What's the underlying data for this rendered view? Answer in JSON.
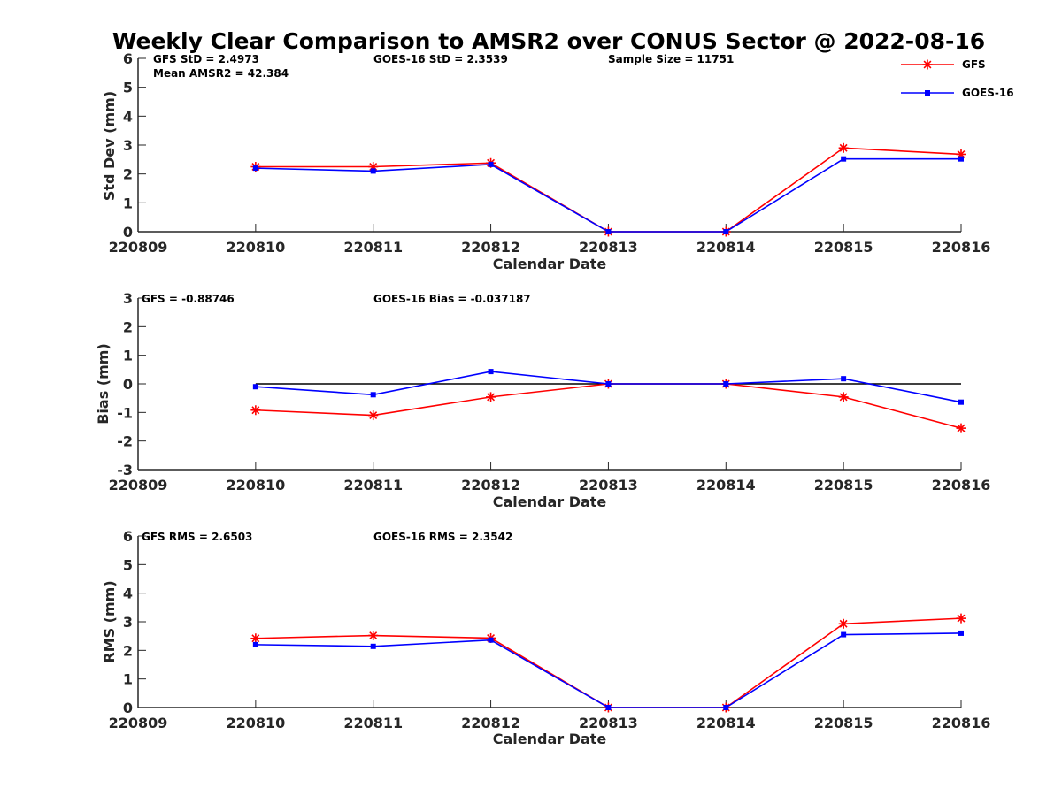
{
  "title": "Weekly Clear Comparison to AMSR2 over CONUS Sector @ 2022-08-16",
  "colors": {
    "gfs": "#ff0000",
    "goes": "#0000ff",
    "zero_line": "#000000",
    "axes": "#262626"
  },
  "legend": {
    "items": [
      {
        "name": "GFS",
        "marker": "asterisk"
      },
      {
        "name": "GOES-16",
        "marker": "square"
      }
    ]
  },
  "panels": [
    {
      "ylabel": "Std Dev (mm)",
      "xlabel": "Calendar Date",
      "annotations": [
        "GFS StD = 2.4973",
        "GOES-16 StD = 2.3539",
        "Sample Size = 11751",
        "Mean AMSR2 = 42.384"
      ]
    },
    {
      "ylabel": "Bias (mm)",
      "xlabel": "Calendar Date",
      "annotations": [
        "GFS = -0.88746",
        "GOES-16 Bias  = -0.037187"
      ]
    },
    {
      "ylabel": "RMS (mm)",
      "xlabel": "Calendar Date",
      "annotations": [
        "GFS RMS = 2.6503",
        "GOES-16 RMS = 2.3542"
      ]
    }
  ],
  "chart_data": [
    {
      "type": "line",
      "title": "Weekly Clear Comparison to AMSR2 over CONUS Sector @ 2022-08-16",
      "xlabel": "Calendar Date",
      "ylabel": "Std Dev (mm)",
      "x": [
        "220810",
        "220811",
        "220812",
        "220813",
        "220814",
        "220815",
        "220816"
      ],
      "x_ticks": [
        "220809",
        "220810",
        "220811",
        "220812",
        "220813",
        "220814",
        "220815",
        "220816"
      ],
      "y_ticks": [
        0,
        1,
        2,
        3,
        4,
        5,
        6
      ],
      "ylim": [
        0,
        6
      ],
      "grid": false,
      "legend": "top-right",
      "series": [
        {
          "name": "GFS",
          "values": [
            2.25,
            2.25,
            2.38,
            0,
            0,
            2.9,
            2.68
          ]
        },
        {
          "name": "GOES-16",
          "values": [
            2.2,
            2.1,
            2.33,
            0,
            0,
            2.52,
            2.52
          ]
        }
      ]
    },
    {
      "type": "line",
      "xlabel": "Calendar Date",
      "ylabel": "Bias (mm)",
      "x": [
        "220810",
        "220811",
        "220812",
        "220813",
        "220814",
        "220815",
        "220816"
      ],
      "x_ticks": [
        "220809",
        "220810",
        "220811",
        "220812",
        "220813",
        "220814",
        "220815",
        "220816"
      ],
      "y_ticks": [
        -3,
        -2,
        -1,
        0,
        1,
        2,
        3
      ],
      "ylim": [
        -3,
        3
      ],
      "grid": false,
      "zero_line": true,
      "series": [
        {
          "name": "GFS",
          "values": [
            -0.92,
            -1.1,
            -0.46,
            0,
            0,
            -0.46,
            -1.55
          ]
        },
        {
          "name": "GOES-16",
          "values": [
            -0.1,
            -0.38,
            0.43,
            0,
            0,
            0.18,
            -0.64
          ]
        }
      ]
    },
    {
      "type": "line",
      "xlabel": "Calendar Date",
      "ylabel": "RMS (mm)",
      "x": [
        "220810",
        "220811",
        "220812",
        "220813",
        "220814",
        "220815",
        "220816"
      ],
      "x_ticks": [
        "220809",
        "220810",
        "220811",
        "220812",
        "220813",
        "220814",
        "220815",
        "220816"
      ],
      "y_ticks": [
        0,
        1,
        2,
        3,
        4,
        5,
        6
      ],
      "ylim": [
        0,
        6
      ],
      "grid": false,
      "series": [
        {
          "name": "GFS",
          "values": [
            2.42,
            2.52,
            2.43,
            0,
            0,
            2.93,
            3.12
          ]
        },
        {
          "name": "GOES-16",
          "values": [
            2.2,
            2.14,
            2.36,
            0,
            0,
            2.55,
            2.6
          ]
        }
      ]
    }
  ]
}
